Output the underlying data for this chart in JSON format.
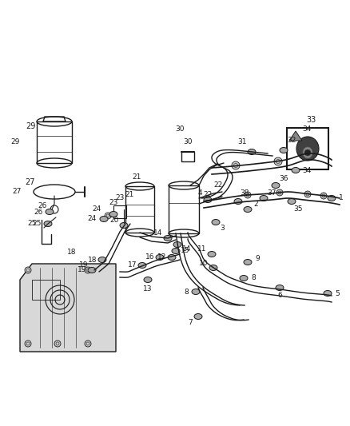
{
  "background_color": "#ffffff",
  "line_color": "#1a1a1a",
  "figsize": [
    4.38,
    5.33
  ],
  "dpi": 100,
  "img_extent": [
    0,
    438,
    0,
    533
  ]
}
